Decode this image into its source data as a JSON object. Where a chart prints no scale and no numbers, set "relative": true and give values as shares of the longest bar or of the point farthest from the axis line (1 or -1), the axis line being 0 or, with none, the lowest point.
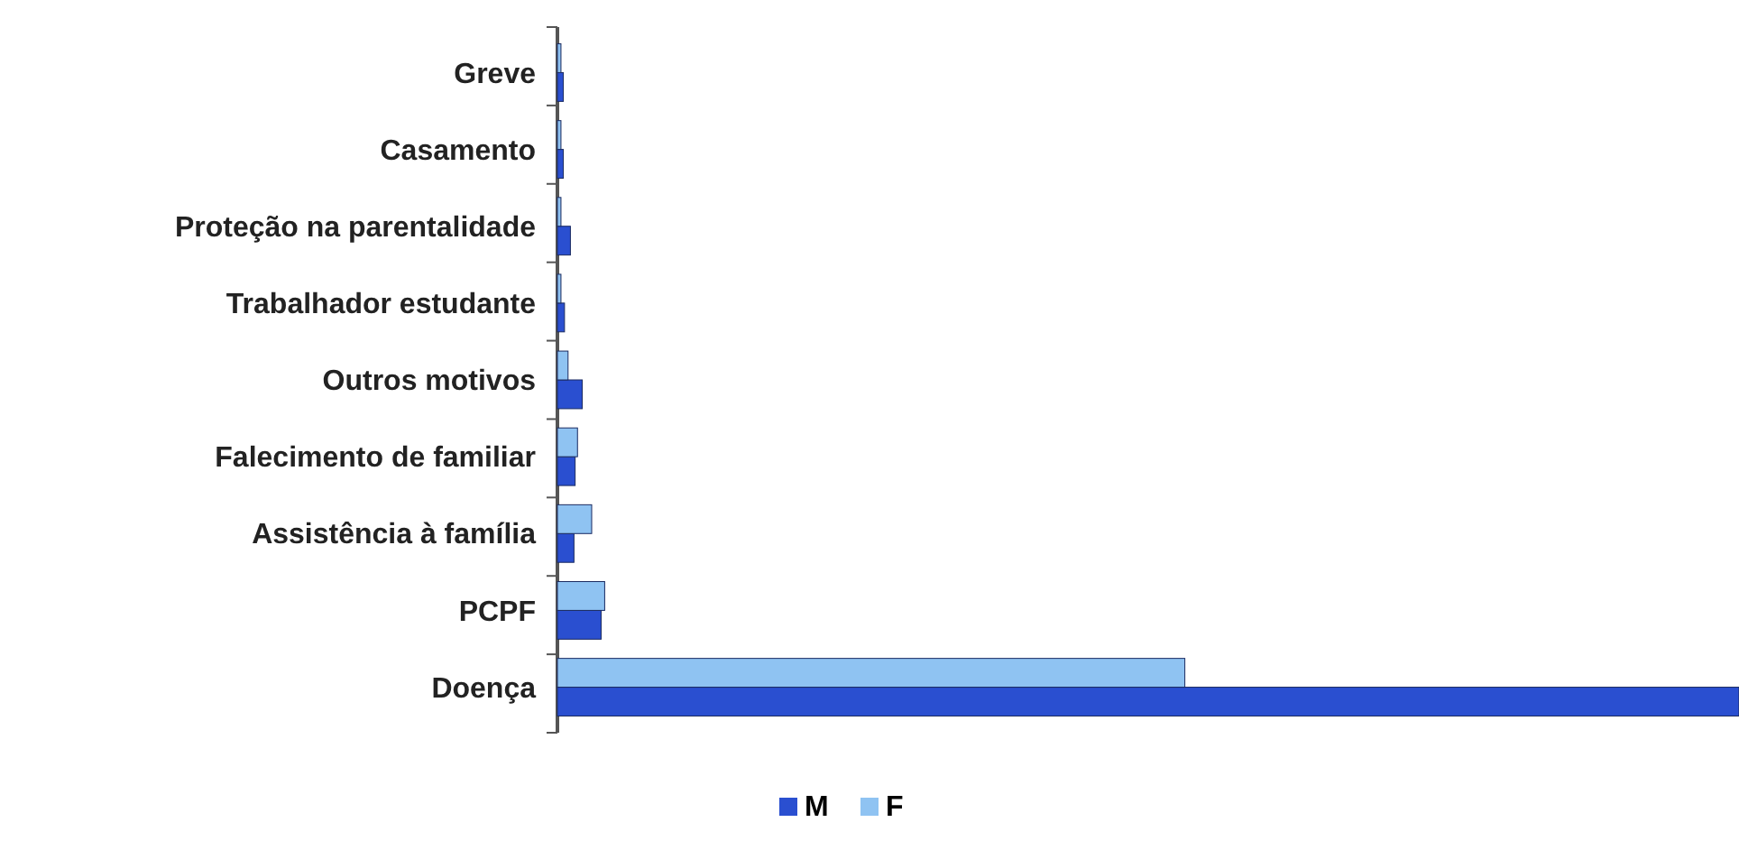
{
  "chart_data": {
    "type": "bar",
    "orientation": "horizontal",
    "relative": true,
    "legend": "bottom",
    "categories": [
      "Greve",
      "Casamento",
      "Proteção na parentalidade",
      "Trabalhador estudante",
      "Outros motivos",
      "Falecimento de familiar",
      "Assistência à família",
      "PCPF",
      "Doença"
    ],
    "series": [
      {
        "name": "M",
        "color": "#2a4fd0",
        "values": [
          0.005,
          0.005,
          0.011,
          0.006,
          0.021,
          0.015,
          0.014,
          0.037,
          1
        ]
      },
      {
        "name": "F",
        "color": "#8fc3f2",
        "values": [
          0.003,
          0.003,
          0.003,
          0.003,
          0.009,
          0.017,
          0.029,
          0.04,
          0.531
        ]
      }
    ]
  }
}
